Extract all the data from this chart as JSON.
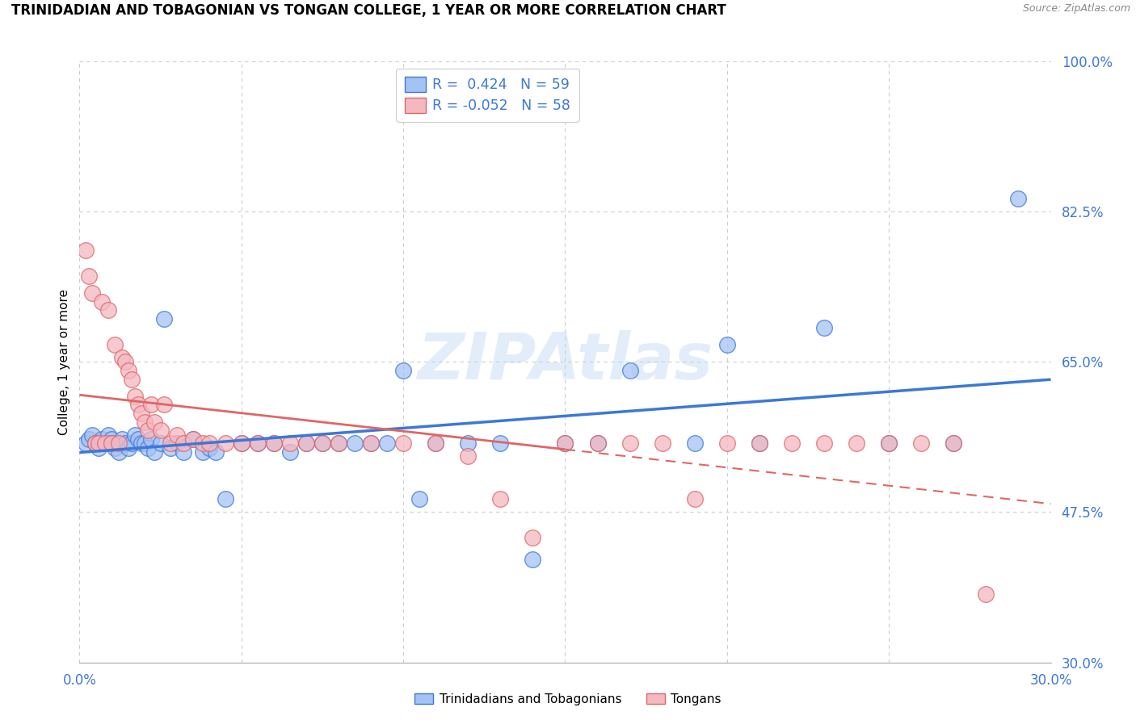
{
  "title": "TRINIDADIAN AND TOBAGONIAN VS TONGAN COLLEGE, 1 YEAR OR MORE CORRELATION CHART",
  "source": "Source: ZipAtlas.com",
  "ylabel": "College, 1 year or more",
  "xmin": 0.0,
  "xmax": 0.3,
  "ymin": 0.3,
  "ymax": 1.0,
  "yticks": [
    0.3,
    0.475,
    0.65,
    0.825,
    1.0
  ],
  "ytick_labels": [
    "30.0%",
    "47.5%",
    "65.0%",
    "82.5%",
    "100.0%"
  ],
  "blue_R": "0.424",
  "blue_N": "59",
  "pink_R": "-0.052",
  "pink_N": "58",
  "blue_face": "#a4c2f4",
  "blue_edge": "#3c78d8",
  "pink_face": "#f4b8c1",
  "pink_edge": "#e06666",
  "blue_line": "#3c78d8",
  "pink_line": "#e06666",
  "legend_label_blue": "Trinidadians and Tobagonians",
  "legend_label_pink": "Tongans",
  "watermark": "ZIPAtlas",
  "blue_x": [
    0.002,
    0.003,
    0.004,
    0.005,
    0.006,
    0.007,
    0.008,
    0.009,
    0.01,
    0.01,
    0.011,
    0.012,
    0.013,
    0.014,
    0.015,
    0.016,
    0.017,
    0.018,
    0.019,
    0.02,
    0.021,
    0.022,
    0.023,
    0.025,
    0.026,
    0.028,
    0.03,
    0.032,
    0.035,
    0.038,
    0.04,
    0.042,
    0.045,
    0.05,
    0.055,
    0.06,
    0.065,
    0.07,
    0.075,
    0.08,
    0.085,
    0.09,
    0.095,
    0.1,
    0.105,
    0.11,
    0.12,
    0.13,
    0.14,
    0.15,
    0.16,
    0.17,
    0.19,
    0.2,
    0.21,
    0.23,
    0.25,
    0.27,
    0.29
  ],
  "blue_y": [
    0.555,
    0.56,
    0.565,
    0.555,
    0.55,
    0.56,
    0.555,
    0.565,
    0.56,
    0.555,
    0.55,
    0.545,
    0.56,
    0.555,
    0.55,
    0.555,
    0.565,
    0.56,
    0.555,
    0.555,
    0.55,
    0.56,
    0.545,
    0.555,
    0.7,
    0.55,
    0.555,
    0.545,
    0.56,
    0.545,
    0.55,
    0.545,
    0.49,
    0.555,
    0.555,
    0.555,
    0.545,
    0.555,
    0.555,
    0.555,
    0.555,
    0.555,
    0.555,
    0.64,
    0.49,
    0.555,
    0.555,
    0.555,
    0.42,
    0.555,
    0.555,
    0.64,
    0.555,
    0.67,
    0.555,
    0.69,
    0.555,
    0.555,
    0.84
  ],
  "pink_x": [
    0.002,
    0.003,
    0.004,
    0.005,
    0.006,
    0.007,
    0.008,
    0.009,
    0.01,
    0.011,
    0.012,
    0.013,
    0.014,
    0.015,
    0.016,
    0.017,
    0.018,
    0.019,
    0.02,
    0.021,
    0.022,
    0.023,
    0.025,
    0.026,
    0.028,
    0.03,
    0.032,
    0.035,
    0.038,
    0.04,
    0.045,
    0.05,
    0.055,
    0.06,
    0.065,
    0.07,
    0.075,
    0.08,
    0.09,
    0.1,
    0.11,
    0.12,
    0.13,
    0.14,
    0.15,
    0.16,
    0.17,
    0.18,
    0.19,
    0.2,
    0.21,
    0.22,
    0.23,
    0.24,
    0.25,
    0.26,
    0.27,
    0.28
  ],
  "pink_y": [
    0.78,
    0.75,
    0.73,
    0.555,
    0.555,
    0.72,
    0.555,
    0.71,
    0.555,
    0.67,
    0.555,
    0.655,
    0.65,
    0.64,
    0.63,
    0.61,
    0.6,
    0.59,
    0.58,
    0.57,
    0.6,
    0.58,
    0.57,
    0.6,
    0.555,
    0.565,
    0.555,
    0.56,
    0.555,
    0.555,
    0.555,
    0.555,
    0.555,
    0.555,
    0.555,
    0.555,
    0.555,
    0.555,
    0.555,
    0.555,
    0.555,
    0.54,
    0.49,
    0.445,
    0.555,
    0.555,
    0.555,
    0.555,
    0.49,
    0.555,
    0.555,
    0.555,
    0.555,
    0.555,
    0.555,
    0.555,
    0.555,
    0.38
  ]
}
